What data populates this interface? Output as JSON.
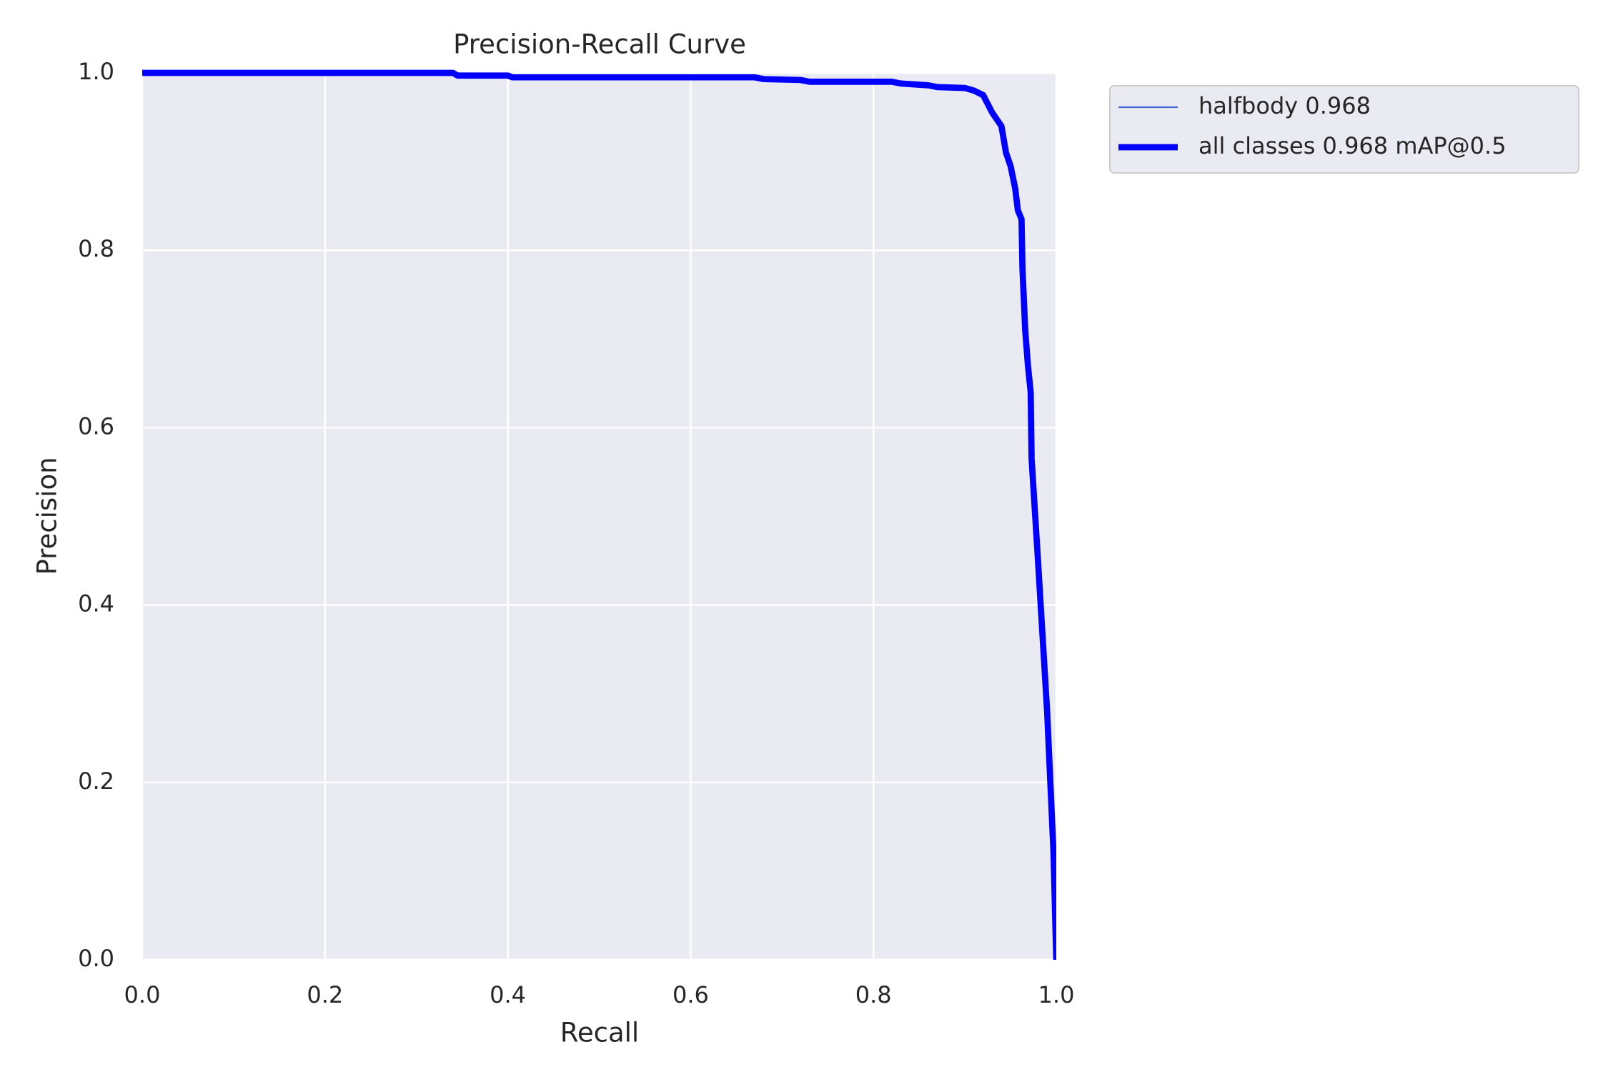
{
  "chart_data": {
    "type": "line",
    "title": "Precision-Recall Curve",
    "x_label": "Recall",
    "y_label": "Precision",
    "x": [
      0.0,
      0.34,
      0.345,
      0.4,
      0.405,
      0.67,
      0.68,
      0.72,
      0.73,
      0.82,
      0.83,
      0.86,
      0.87,
      0.9,
      0.91,
      0.92,
      0.925,
      0.93,
      0.94,
      0.945,
      0.95,
      0.955,
      0.958,
      0.962,
      0.963,
      0.966,
      0.969,
      0.972,
      0.973,
      0.98,
      0.99,
      0.997,
      1.0
    ],
    "series": [
      {
        "name": "halfbody 0.968",
        "color": "#4169d8",
        "values": [
          1.0,
          1.0,
          0.997,
          0.997,
          0.995,
          0.995,
          0.993,
          0.992,
          0.99,
          0.99,
          0.988,
          0.986,
          0.984,
          0.983,
          0.98,
          0.975,
          0.965,
          0.955,
          0.94,
          0.91,
          0.895,
          0.87,
          0.845,
          0.835,
          0.78,
          0.71,
          0.67,
          0.64,
          0.565,
          0.45,
          0.28,
          0.12,
          0.0
        ]
      },
      {
        "name": "all classes 0.968 mAP@0.5",
        "color": "#0000ff",
        "values": [
          1.0,
          1.0,
          0.997,
          0.997,
          0.995,
          0.995,
          0.993,
          0.992,
          0.99,
          0.99,
          0.988,
          0.986,
          0.984,
          0.983,
          0.98,
          0.975,
          0.965,
          0.955,
          0.94,
          0.91,
          0.895,
          0.87,
          0.845,
          0.835,
          0.78,
          0.71,
          0.67,
          0.64,
          0.565,
          0.45,
          0.28,
          0.12,
          0.0
        ]
      }
    ],
    "xlim": [
      0,
      1
    ],
    "ylim": [
      0,
      1
    ],
    "xticks": [
      {
        "value": 0,
        "label": "0.0"
      },
      0.2,
      0.4,
      0.6,
      0.8,
      {
        "value": 1,
        "label": "1.0"
      }
    ],
    "yticks": [
      {
        "value": 0,
        "label": "0.0"
      },
      0.2,
      0.4,
      0.6,
      0.8,
      {
        "value": 1,
        "label": "1.0"
      }
    ],
    "grid": true,
    "legend": "outside-upper-right"
  }
}
